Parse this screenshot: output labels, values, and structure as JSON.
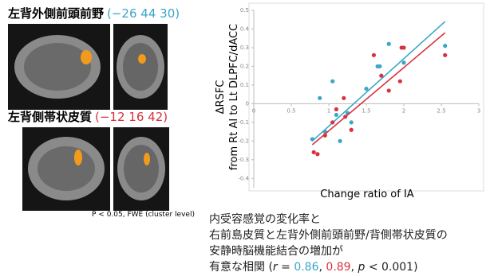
{
  "regions": [
    {
      "name": "左背外側前頭前野",
      "coords": "(−26 44 30)"
    },
    {
      "name": "左背側帯状皮質",
      "coords": "(−12 16 42)"
    }
  ],
  "threshold": "P < 0.05, FWE (cluster level)",
  "conclusion": {
    "lines": [
      "内受容感覚の変化率と",
      "右前島皮質と左背外側前頭前野/背側帯状皮質の",
      "安静時脳機能結合の増加が"
    ],
    "last": [
      "有意な相関 (",
      "r",
      " = ",
      "0.86",
      ", ",
      "0.89",
      ", ",
      "p",
      " < 0.001)"
    ]
  },
  "chart_data": {
    "type": "scatter",
    "x_label": "Change ratio of IA",
    "y_label": [
      "ΔRSFC",
      "from Rt AI to Lt DLPFC/dACC"
    ],
    "xlim": [
      0,
      3
    ],
    "xticks": [
      0,
      0.5,
      1,
      1.5,
      2,
      2.5,
      3
    ],
    "ylim": [
      -0.45,
      0.5
    ],
    "yticks": [
      0.5,
      0.4,
      0.3,
      0.2,
      0.1,
      0,
      -0.1,
      -0.2,
      -0.3,
      -0.4
    ],
    "series": [
      {
        "color": "#3aa6c8",
        "x": [
          0.78,
          0.88,
          1.05,
          1.1,
          1.15,
          1.25,
          1.3,
          1.65,
          1.68,
          1.8,
          2.0,
          2.55,
          0.95,
          1.5
        ],
        "values": [
          -0.19,
          0.03,
          0.12,
          -0.06,
          -0.2,
          -0.05,
          -0.1,
          0.2,
          0.2,
          0.32,
          0.22,
          0.31,
          -0.15,
          0.08
        ],
        "fit": {
          "x": [
            0.78,
            2.55
          ],
          "y": [
            -0.2,
            0.44
          ]
        }
      },
      {
        "color": "#d9313f",
        "x": [
          0.8,
          0.85,
          0.95,
          1.05,
          1.2,
          1.22,
          1.3,
          1.6,
          1.7,
          1.8,
          1.95,
          1.97,
          2.0,
          2.55,
          1.1
        ],
        "values": [
          -0.26,
          -0.27,
          -0.17,
          -0.1,
          0.03,
          -0.07,
          -0.14,
          0.26,
          0.15,
          0.07,
          0.12,
          0.3,
          0.3,
          0.26,
          -0.03
        ],
        "fit": {
          "x": [
            0.78,
            2.55
          ],
          "y": [
            -0.22,
            0.38
          ]
        }
      }
    ]
  }
}
